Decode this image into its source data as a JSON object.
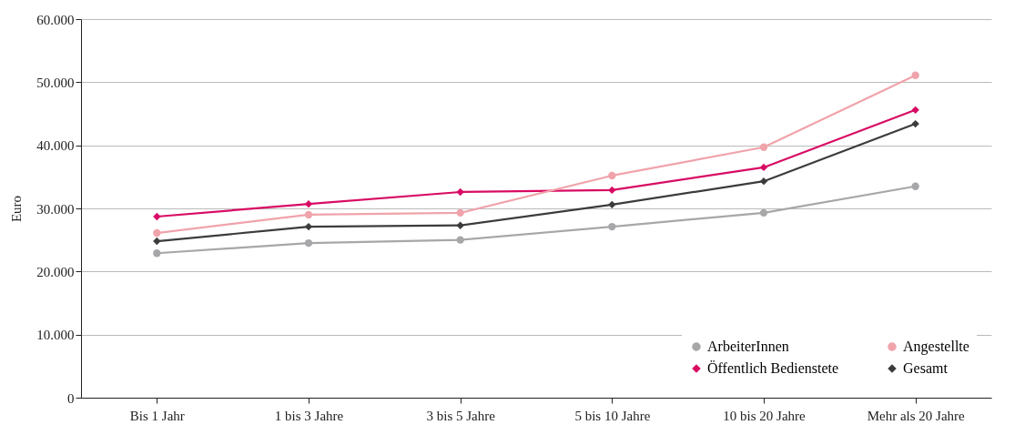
{
  "chart_data": {
    "type": "line",
    "ylabel": "Euro",
    "categories": [
      "Bis 1 Jahr",
      "1 bis 3 Jahre",
      "3 bis 5 Jahre",
      "5 bis 10 Jahre",
      "10 bis 20 Jahre",
      "Mehr als 20 Jahre"
    ],
    "series": [
      {
        "name": "ArbeiterInnen",
        "color": "#a7a7a9",
        "marker": "circle",
        "values": [
          22900,
          24500,
          25000,
          27100,
          29300,
          33500
        ]
      },
      {
        "name": "Öffentlich Bedienstete",
        "color": "#d80b64",
        "marker": "diamond",
        "values": [
          28700,
          30700,
          32600,
          32900,
          36500,
          45600
        ]
      },
      {
        "name": "Angestellte",
        "color": "#f0a3aa",
        "marker": "circle",
        "values": [
          26100,
          29000,
          29300,
          35200,
          39700,
          51100
        ]
      },
      {
        "name": "Gesamt",
        "color": "#3c3c3e",
        "marker": "diamond",
        "values": [
          24800,
          27100,
          27300,
          30600,
          34300,
          43400
        ]
      }
    ],
    "ylim": [
      0,
      60000
    ],
    "yticks": [
      0,
      {
        "value": 10000,
        "label": "10.000"
      },
      {
        "value": 20000,
        "label": "20.000"
      },
      {
        "value": 30000,
        "label": "30.000"
      },
      {
        "value": 40000,
        "label": "40.000"
      },
      {
        "value": 50000,
        "label": "50.000"
      },
      {
        "value": 60000,
        "label": "60.000"
      }
    ],
    "grid": "y",
    "legend": "bottom right"
  }
}
